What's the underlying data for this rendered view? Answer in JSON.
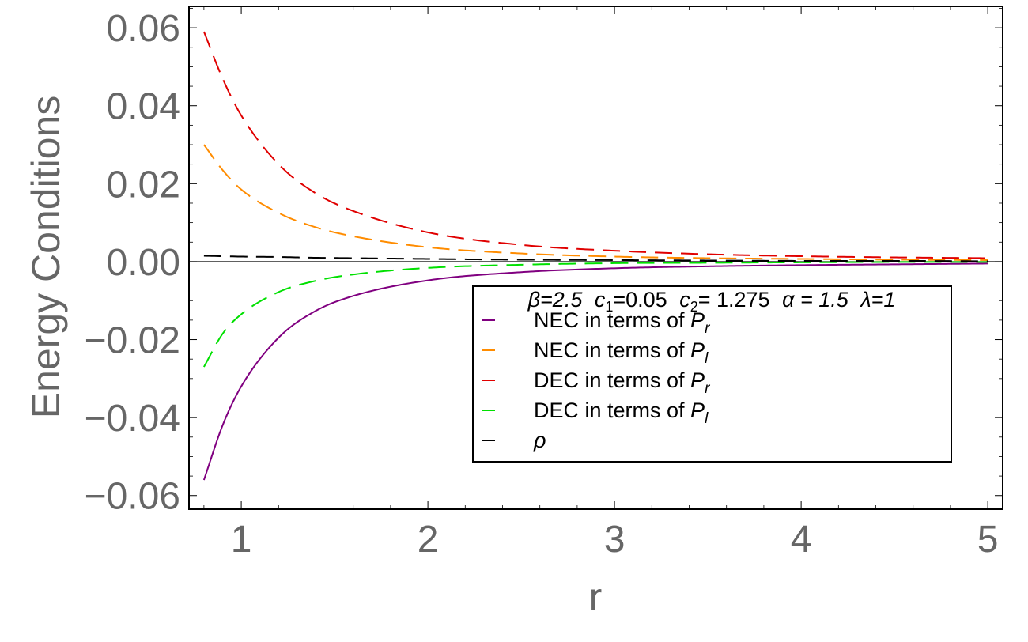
{
  "chart_data": {
    "type": "line",
    "xlabel": "r",
    "ylabel": "Energy Conditions",
    "xlim": [
      0.72,
      5.08
    ],
    "ylim": [
      -0.0635,
      0.0655
    ],
    "xticks": [
      1,
      2,
      3,
      4,
      5
    ],
    "xtick_labels": [
      "1",
      "2",
      "3",
      "4",
      "5"
    ],
    "yticks": [
      -0.06,
      -0.04,
      -0.02,
      0.0,
      0.02,
      0.04,
      0.06
    ],
    "ytick_labels": [
      "−0.06",
      "−0.04",
      "−0.02",
      "0.00",
      "0.02",
      "0.04",
      "0.06"
    ],
    "grid": false,
    "legend_position": "center-right",
    "legend_title": {
      "beta": "β=2.5",
      "c1": "c",
      "c1_sub": "1",
      "c1_val": "=0.05",
      "c2": "c",
      "c2_sub": "2",
      "c2_val": "= 1.275",
      "alpha": "α = 1.5",
      "lambda": "λ=1"
    },
    "x": [
      0.8,
      0.9,
      1.0,
      1.2,
      1.4,
      1.6,
      2.0,
      2.5,
      3.0,
      3.5,
      4.0,
      4.5,
      5.0
    ],
    "series": [
      {
        "name": "NEC in terms of ",
        "name_italic": "P",
        "name_sub": "r",
        "color": "#800080",
        "dash": "solid",
        "values": [
          -0.056,
          -0.042,
          -0.032,
          -0.0195,
          -0.0126,
          -0.0088,
          -0.0048,
          -0.0027,
          -0.0017,
          -0.0012,
          -0.0009,
          -0.0007,
          -0.0005
        ]
      },
      {
        "name": "NEC in terms of ",
        "name_italic": "P",
        "name_sub": "l",
        "color": "#ff8c00",
        "dash": "dashed",
        "values": [
          0.03,
          0.0235,
          0.0185,
          0.0125,
          0.0088,
          0.0065,
          0.0037,
          0.0021,
          0.0013,
          0.0009,
          0.0007,
          0.0005,
          0.0004
        ]
      },
      {
        "name": "DEC in terms of ",
        "name_italic": "P",
        "name_sub": "r",
        "color": "#e00000",
        "dash": "dashed",
        "values": [
          0.059,
          0.047,
          0.0375,
          0.025,
          0.0175,
          0.013,
          0.0075,
          0.0043,
          0.0028,
          0.0019,
          0.0014,
          0.0011,
          0.0009
        ]
      },
      {
        "name": "DEC in terms of ",
        "name_italic": "P",
        "name_sub": "l",
        "color": "#00e000",
        "dash": "dashed",
        "values": [
          -0.027,
          -0.0185,
          -0.0135,
          -0.0078,
          -0.0049,
          -0.0033,
          -0.0016,
          -0.0008,
          -0.0004,
          -0.0003,
          -0.0002,
          -0.0001,
          -0.0001
        ]
      },
      {
        "name": "",
        "name_italic": "ρ",
        "name_sub": "",
        "color": "#000000",
        "dash": "dashed",
        "values": [
          0.0015,
          0.0014,
          0.0013,
          0.0012,
          0.001,
          0.0009,
          0.0007,
          0.0005,
          0.0004,
          0.0003,
          0.0002,
          0.0002,
          0.0001
        ]
      }
    ]
  }
}
